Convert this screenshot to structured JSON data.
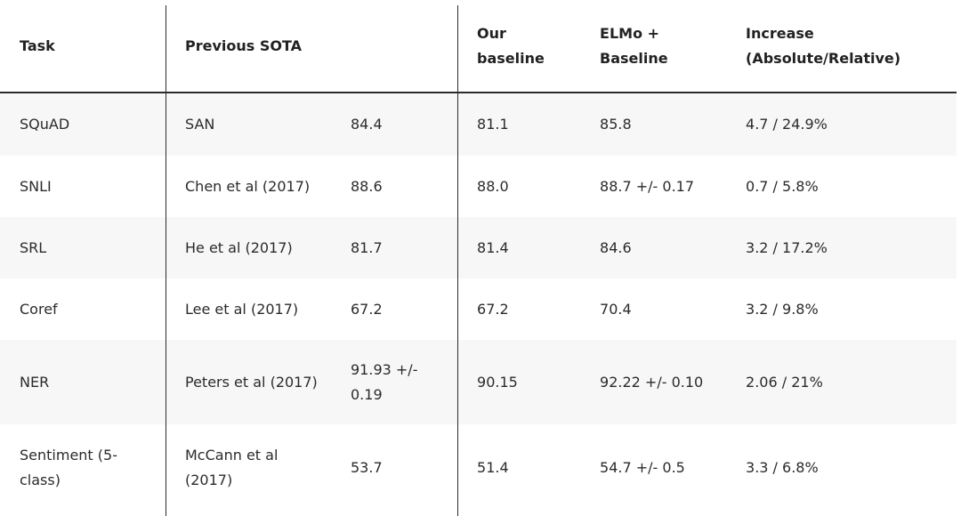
{
  "table": {
    "headers": {
      "task": "Task",
      "previous_sota": "Previous SOTA",
      "our_baseline": "Our baseline",
      "elmo_baseline": "ELMo + Baseline",
      "increase": "Increase (Absolute/Relative)"
    },
    "rows": [
      {
        "task": "SQuAD",
        "prev_model": "SAN",
        "prev_score": "84.4",
        "our_baseline": "81.1",
        "elmo_baseline": "85.8",
        "increase": "4.7 / 24.9%"
      },
      {
        "task": "SNLI",
        "prev_model": "Chen et al (2017)",
        "prev_score": "88.6",
        "our_baseline": "88.0",
        "elmo_baseline": "88.7 +/- 0.17",
        "increase": "0.7 / 5.8%"
      },
      {
        "task": "SRL",
        "prev_model": "He et al (2017)",
        "prev_score": "81.7",
        "our_baseline": "81.4",
        "elmo_baseline": "84.6",
        "increase": "3.2 / 17.2%"
      },
      {
        "task": "Coref",
        "prev_model": "Lee et al (2017)",
        "prev_score": "67.2",
        "our_baseline": "67.2",
        "elmo_baseline": "70.4",
        "increase": "3.2 / 9.8%"
      },
      {
        "task": "NER",
        "prev_model": "Peters et al (2017)",
        "prev_score": "91.93 +/- 0.19",
        "our_baseline": "90.15",
        "elmo_baseline": "92.22 +/- 0.10",
        "increase": "2.06 / 21%"
      },
      {
        "task": "Sentiment (5-class)",
        "prev_model": "McCann et al (2017)",
        "prev_score": "53.7",
        "our_baseline": "51.4",
        "elmo_baseline": "54.7 +/- 0.5",
        "increase": "3.3 / 6.8%"
      }
    ]
  }
}
